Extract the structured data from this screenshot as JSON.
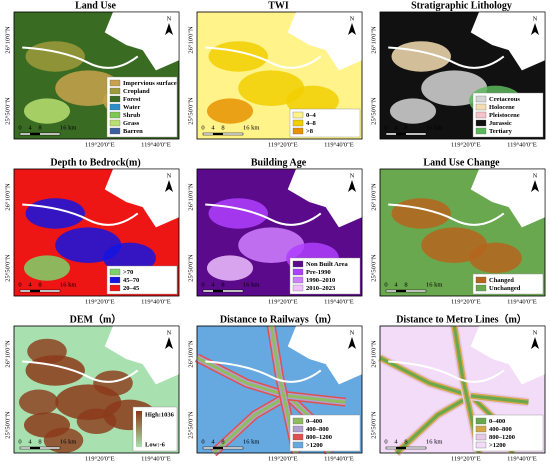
{
  "north": "N",
  "scale_labels": [
    "0",
    "4",
    "8",
    "16 km"
  ],
  "lat_labels": [
    "26°10'0\"N",
    "25°50'0\"N"
  ],
  "lon_labels": [
    "119°20'0\"E",
    "119°40'0\"E"
  ],
  "panels": [
    {
      "title": "Land Use",
      "legend": [
        {
          "label": "Impervious surface",
          "color": "#c9a24c"
        },
        {
          "label": "Cropland",
          "color": "#9c9a3a"
        },
        {
          "label": "Forest",
          "color": "#3a6b22"
        },
        {
          "label": "Water",
          "color": "#2a8fc8"
        },
        {
          "label": "Shrub",
          "color": "#7cc850"
        },
        {
          "label": "Grass",
          "color": "#b8e070"
        },
        {
          "label": "Barren",
          "color": "#3a5fa0"
        }
      ]
    },
    {
      "title": "TWI",
      "legend": [
        {
          "label": "0–4",
          "color": "#fff38a"
        },
        {
          "label": "4–8",
          "color": "#f2cf00"
        },
        {
          "label": ">8",
          "color": "#e89200"
        }
      ]
    },
    {
      "title": "Stratigraphic Lithology",
      "legend": [
        {
          "label": "Cretaceous",
          "color": "#d6d6d6"
        },
        {
          "label": "Holocene",
          "color": "#f5deb3"
        },
        {
          "label": "Pleistocene",
          "color": "#f4c2c8"
        },
        {
          "label": "Jurassic",
          "color": "#111111"
        },
        {
          "label": "Tertiary",
          "color": "#5cb85c"
        }
      ]
    },
    {
      "title": "Depth to Bedrock(m)",
      "legend": [
        {
          "label": ">70",
          "color": "#7cd36a"
        },
        {
          "label": "45–70",
          "color": "#1414e0"
        },
        {
          "label": "20–45",
          "color": "#ee1515"
        }
      ]
    },
    {
      "title": "Building Age",
      "legend": [
        {
          "label": "Non Built Area",
          "color": "#5a0a8a"
        },
        {
          "label": "Pre-1990",
          "color": "#b040ff"
        },
        {
          "label": "1990–2010",
          "color": "#d080ff"
        },
        {
          "label": "2010–2023",
          "color": "#f0c0ff"
        }
      ]
    },
    {
      "title": "Land Use Change",
      "legend": [
        {
          "label": "Changed",
          "color": "#b5651d"
        },
        {
          "label": "Unchanged",
          "color": "#6aa84f"
        }
      ]
    },
    {
      "title": "DEM（m）",
      "legend": [
        {
          "label": "High:1036",
          "color": "#8b3a1a"
        },
        {
          "label": "Low:-6",
          "color": "#a8e0b0"
        }
      ]
    },
    {
      "title": "Distance to Railways（m）",
      "legend": [
        {
          "label": "0–400",
          "color": "#8fbc5f"
        },
        {
          "label": "400–800",
          "color": "#b0a0d0"
        },
        {
          "label": "800–1200",
          "color": "#e05050"
        },
        {
          "label": ">1200",
          "color": "#66a8e0"
        }
      ]
    },
    {
      "title": "Distance to Metro Lines（m）",
      "legend": [
        {
          "label": "0–400",
          "color": "#6aa84f"
        },
        {
          "label": "400–800",
          "color": "#d4a84a"
        },
        {
          "label": "800–1200",
          "color": "#e8c8e8"
        },
        {
          "label": ">1200",
          "color": "#f3dcf8"
        }
      ]
    }
  ]
}
